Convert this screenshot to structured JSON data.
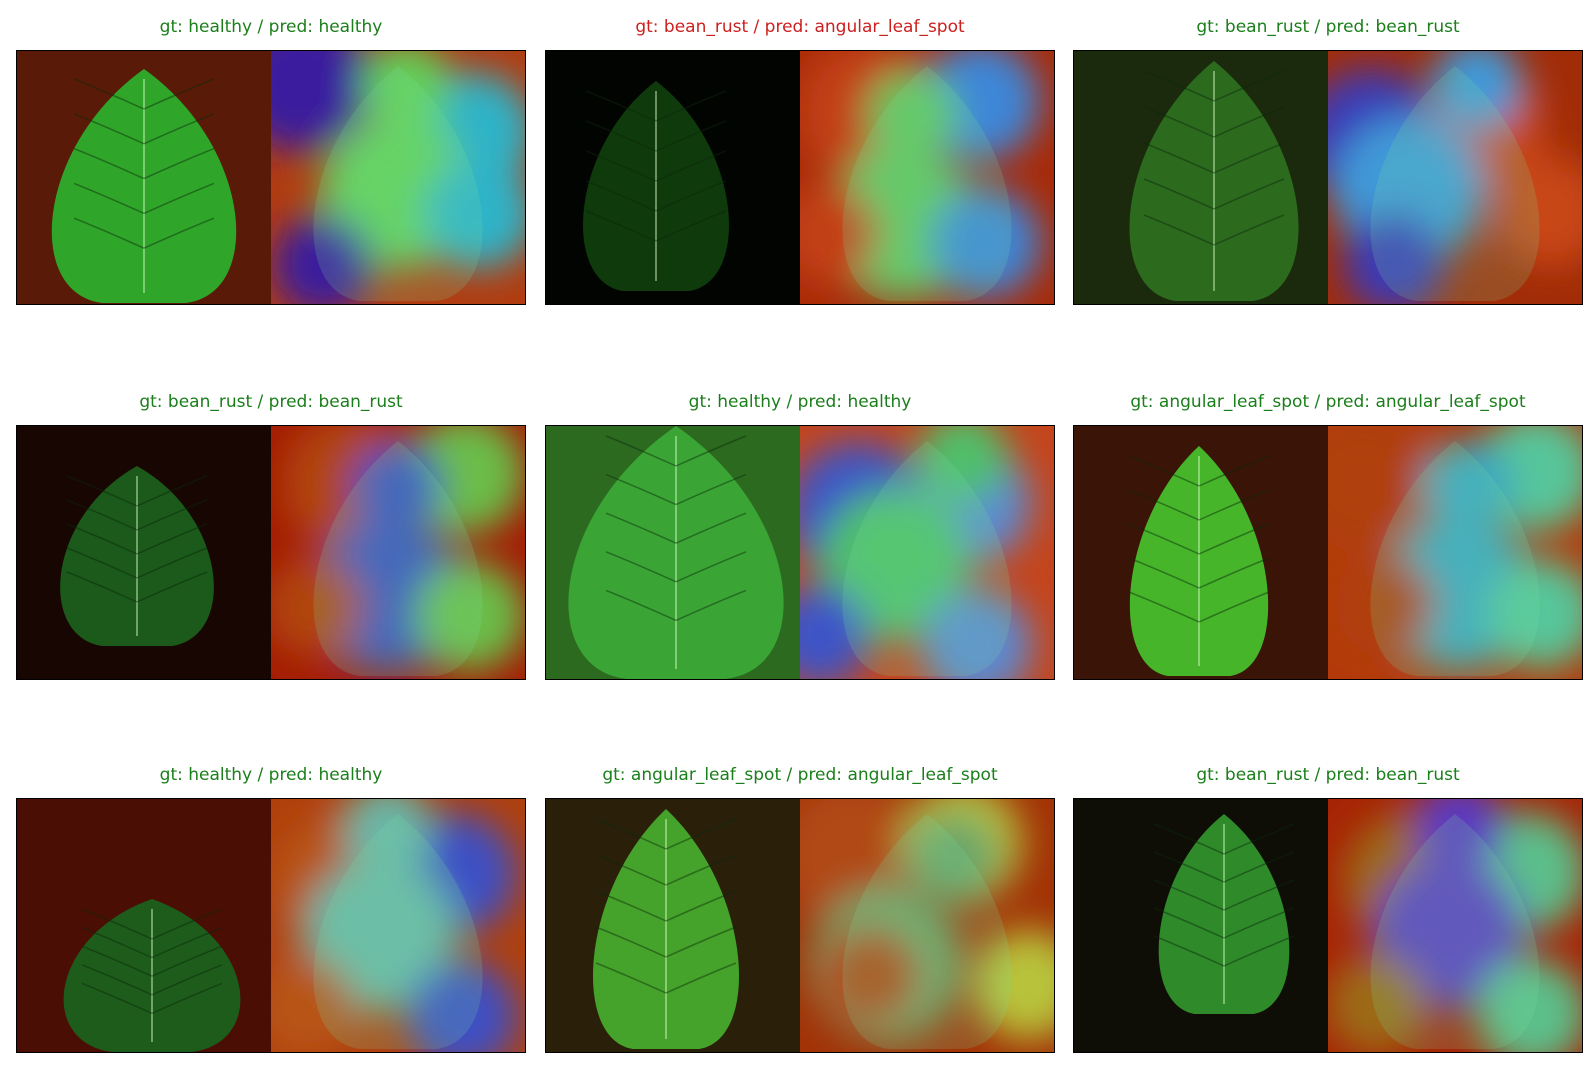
{
  "colors": {
    "correct": "#1a7f1a",
    "incorrect": "#cc1f1f"
  },
  "panels": [
    {
      "title": "gt: healthy / pred: healthy",
      "correct": true,
      "photo_bg": "#5a1a08",
      "leaf": "#2fa52a",
      "heat": [
        "#3b1e9e",
        "#2fb3c8",
        "#62d05a",
        "#b23c10"
      ]
    },
    {
      "title": "gt: bean_rust / pred: angular_leaf_spot",
      "correct": false,
      "photo_bg": "#020402",
      "leaf": "#0f3a0c",
      "heat": [
        "#c34112",
        "#3d86d8",
        "#61c45f",
        "#a82a08"
      ]
    },
    {
      "title": "gt: bean_rust / pred: bean_rust",
      "correct": true,
      "photo_bg": "#1b2a0c",
      "leaf": "#2c6a1e",
      "heat": [
        "#3b3ab8",
        "#c84614",
        "#3f9ad8",
        "#a12c08"
      ]
    },
    {
      "title": "gt: bean_rust / pred: bean_rust",
      "correct": true,
      "photo_bg": "#170602",
      "leaf": "#1b5a1a",
      "heat": [
        "#b14510",
        "#6bbd4a",
        "#3a50c0",
        "#a41c05"
      ]
    },
    {
      "title": "gt: healthy / pred: healthy",
      "correct": true,
      "photo_bg": "#2c6a20",
      "leaf": "#3aa535",
      "heat": [
        "#3d55c8",
        "#5c8ad2",
        "#4fc06a",
        "#c4451c"
      ]
    },
    {
      "title": "gt: angular_leaf_spot / pred: angular_leaf_spot",
      "correct": true,
      "photo_bg": "#3a1406",
      "leaf": "#46b52a",
      "heat": [
        "#b0400f",
        "#56c69a",
        "#3aa6c2",
        "#b33a0b"
      ]
    },
    {
      "title": "gt: healthy / pred: healthy",
      "correct": true,
      "photo_bg": "#4a0e05",
      "leaf": "#1d5c1a",
      "heat": [
        "#b85412",
        "#3c4fc4",
        "#69b7a8",
        "#b0400d"
      ]
    },
    {
      "title": "gt: angular_leaf_spot / pred: angular_leaf_spot",
      "correct": true,
      "photo_bg": "#2a200a",
      "leaf": "#45a22a",
      "heat": [
        "#b14a12",
        "#b8c33a",
        "#6aa66a",
        "#a23206"
      ]
    },
    {
      "title": "gt: bean_rust / pred: bean_rust",
      "correct": true,
      "photo_bg": "#0e0d06",
      "leaf": "#2f8a2a",
      "heat": [
        "#9c6a18",
        "#5bbf8a",
        "#5b3ac2",
        "#a72406"
      ]
    }
  ]
}
